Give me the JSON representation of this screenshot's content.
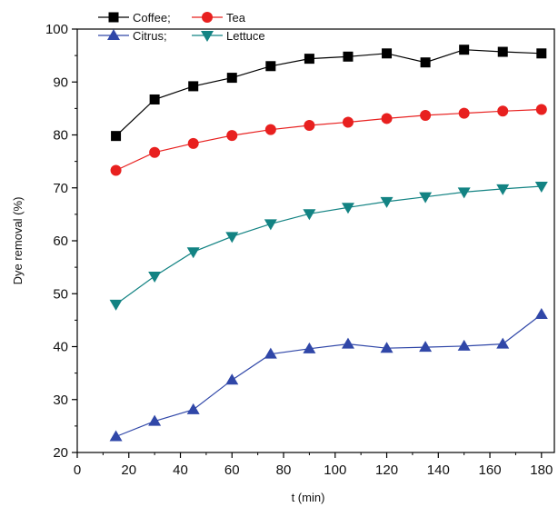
{
  "chart_data": {
    "type": "line",
    "title": "",
    "xlabel": "t (min)",
    "ylabel": "Dye removal (%)",
    "xlim": [
      0,
      185
    ],
    "ylim": [
      20,
      100
    ],
    "x_ticks": [
      0,
      20,
      40,
      60,
      80,
      100,
      120,
      140,
      160,
      180
    ],
    "y_ticks": [
      20,
      30,
      40,
      50,
      60,
      70,
      80,
      90,
      100
    ],
    "grid": false,
    "legend_position": "top-left",
    "x": [
      15,
      30,
      45,
      60,
      75,
      90,
      105,
      120,
      135,
      150,
      165,
      180
    ],
    "series": [
      {
        "name": "Coffee;",
        "color": "#000000",
        "marker": "square",
        "values": [
          79.8,
          86.7,
          89.2,
          90.8,
          93.0,
          94.4,
          94.8,
          95.4,
          93.7,
          96.1,
          95.7,
          95.4
        ]
      },
      {
        "name": "Tea",
        "color": "#e8201f",
        "marker": "circle",
        "values": [
          73.3,
          76.7,
          78.4,
          79.9,
          81.0,
          81.8,
          82.4,
          83.1,
          83.7,
          84.1,
          84.5,
          84.8
        ]
      },
      {
        "name": "Citrus;",
        "color": "#3047a8",
        "marker": "triangle-up",
        "values": [
          23.0,
          25.9,
          28.1,
          33.7,
          38.6,
          39.6,
          40.5,
          39.7,
          39.9,
          40.1,
          40.5,
          46.1
        ]
      },
      {
        "name": "Lettuce",
        "color": "#138383",
        "marker": "triangle-down",
        "values": [
          48.0,
          53.3,
          57.9,
          60.8,
          63.2,
          65.1,
          66.3,
          67.4,
          68.3,
          69.2,
          69.8,
          70.3
        ]
      }
    ]
  }
}
